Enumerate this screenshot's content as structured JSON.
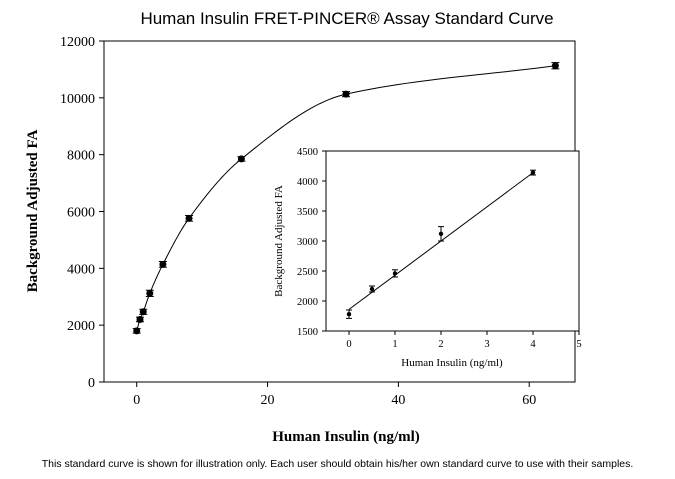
{
  "caption": "This standard curve is shown for illustration only.  Each user should obtain his/her own standard curve to use with their samples.",
  "chart_data": [
    {
      "type": "scatter",
      "title": "Human Insulin FRET-PINCER® Assay Standard Curve",
      "xlabel": "Human Insulin (ng/ml)",
      "ylabel": "Background Adjusted FA",
      "xlim": [
        -5,
        67
      ],
      "ylim": [
        0,
        12000
      ],
      "xticks": [
        0,
        20,
        40,
        60
      ],
      "yticks": [
        0,
        2000,
        4000,
        6000,
        8000,
        10000,
        12000
      ],
      "grid": false,
      "fit": "saturation curve",
      "points": [
        {
          "x": 0,
          "y": 1800,
          "err": 80
        },
        {
          "x": 0.5,
          "y": 2200,
          "err": 80
        },
        {
          "x": 1,
          "y": 2470,
          "err": 90
        },
        {
          "x": 2,
          "y": 3120,
          "err": 110
        },
        {
          "x": 4,
          "y": 4140,
          "err": 100
        },
        {
          "x": 8,
          "y": 5760,
          "err": 100
        },
        {
          "x": 16,
          "y": 7850,
          "err": 80
        },
        {
          "x": 32,
          "y": 10130,
          "err": 90
        },
        {
          "x": 64,
          "y": 11130,
          "err": 110
        }
      ]
    },
    {
      "type": "scatter",
      "title": "",
      "xlabel": "Human Insulin (ng/ml)",
      "ylabel": "Background Adjusted FA",
      "xlim": [
        -0.5,
        5
      ],
      "ylim": [
        1500,
        4500
      ],
      "xticks": [
        0,
        1,
        2,
        3,
        4,
        5
      ],
      "yticks": [
        1500,
        2000,
        2500,
        3000,
        3500,
        4000,
        4500
      ],
      "grid": false,
      "fit": "linear",
      "fit_line": {
        "x0": 0,
        "y0": 1860,
        "x1": 4,
        "y1": 4140
      },
      "points": [
        {
          "x": 0,
          "y": 1780,
          "err": 70
        },
        {
          "x": 0.5,
          "y": 2200,
          "err": 50
        },
        {
          "x": 1,
          "y": 2460,
          "err": 60
        },
        {
          "x": 2,
          "y": 3120,
          "err": 120
        },
        {
          "x": 4,
          "y": 4140,
          "err": 40
        }
      ]
    }
  ]
}
